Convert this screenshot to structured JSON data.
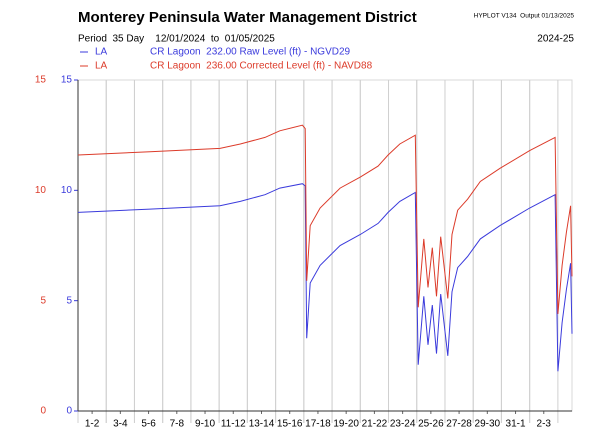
{
  "chart_data": {
    "type": "line",
    "title": "Monterey Peninsula Water Management District",
    "program": "HYPLOT V134  Output 01/13/2025",
    "subtitle": "Period  35 Day    12/01/2024  to  01/05/2025",
    "season": "2024-25",
    "x": [
      1.0,
      6.1,
      11.06,
      12.5,
      14.25,
      15.3,
      16.9,
      17.1,
      17.2,
      17.45,
      18.15,
      19.57,
      21.0,
      22.26,
      22.97,
      23.8,
      24.9,
      25.1,
      25.5,
      25.8,
      26.1,
      26.4,
      26.7,
      27.2,
      27.5,
      27.9,
      28.6,
      29.5,
      30.9,
      33.0,
      34.8,
      35.0,
      35.3,
      35.6,
      35.9,
      36.0
    ],
    "xlim": [
      1,
      36
    ],
    "xticks": [
      {
        "value": 2,
        "label": "1-2"
      },
      {
        "value": 4,
        "label": "3-4"
      },
      {
        "value": 6,
        "label": "5-6"
      },
      {
        "value": 8,
        "label": "7-8"
      },
      {
        "value": 10,
        "label": "9-10"
      },
      {
        "value": 12,
        "label": "11-12"
      },
      {
        "value": 14,
        "label": "13-14"
      },
      {
        "value": 16,
        "label": "15-16"
      },
      {
        "value": 18,
        "label": "17-18"
      },
      {
        "value": 20,
        "label": "19-20"
      },
      {
        "value": 22,
        "label": "21-22"
      },
      {
        "value": 24,
        "label": "23-24"
      },
      {
        "value": 26,
        "label": "25-26"
      },
      {
        "value": 28,
        "label": "27-28"
      },
      {
        "value": 30,
        "label": "29-30"
      },
      {
        "value": 32,
        "label": "31-1"
      },
      {
        "value": 34,
        "label": "2-3"
      }
    ],
    "ylim": [
      0,
      15
    ],
    "yticks": [
      0,
      5,
      10,
      15
    ],
    "y2lim": [
      0,
      15
    ],
    "y2ticks": [
      0,
      5,
      10,
      15
    ],
    "series": [
      {
        "site": "LA",
        "name": "CR Lagoon  232.00 Raw Level (ft) - NGVD29",
        "color": "#3b3bdc",
        "values": [
          9.0,
          9.15,
          9.3,
          9.5,
          9.8,
          10.1,
          10.3,
          10.2,
          3.3,
          5.8,
          6.6,
          7.5,
          8.0,
          8.5,
          9.0,
          9.5,
          9.9,
          2.1,
          5.2,
          3.0,
          4.8,
          2.6,
          5.3,
          2.5,
          5.4,
          6.5,
          7.0,
          7.8,
          8.4,
          9.2,
          9.8,
          1.8,
          4.0,
          5.5,
          6.7,
          3.5
        ]
      },
      {
        "site": "LA",
        "name": "CR Lagoon  236.00 Corrected Level (ft) - NAVD88",
        "color": "#dc3b2a",
        "axis": "y2",
        "values": [
          11.6,
          11.75,
          11.9,
          12.1,
          12.4,
          12.7,
          12.95,
          12.8,
          5.9,
          8.4,
          9.2,
          10.1,
          10.6,
          11.1,
          11.6,
          12.1,
          12.5,
          4.7,
          7.8,
          5.6,
          7.4,
          5.2,
          7.9,
          5.1,
          8.0,
          9.1,
          9.6,
          10.4,
          11.0,
          11.8,
          12.4,
          4.4,
          6.6,
          8.1,
          9.3,
          6.1
        ]
      }
    ]
  }
}
